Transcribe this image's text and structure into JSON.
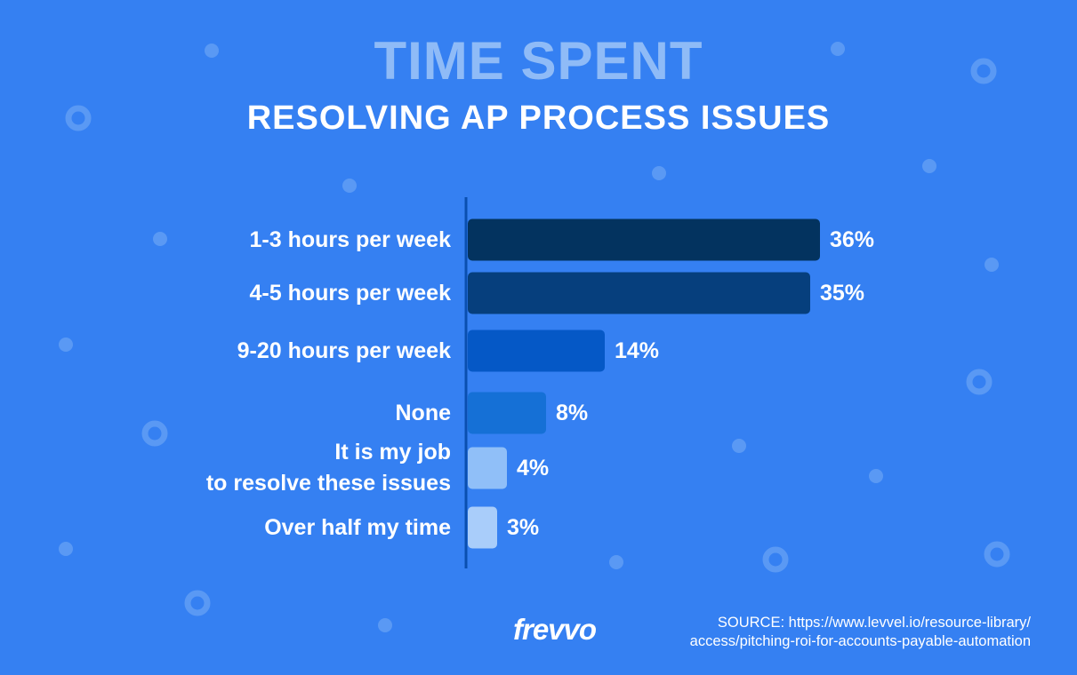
{
  "title": "TIME SPENT",
  "subtitle": "RESOLVING AP PROCESS ISSUES",
  "chart_data": {
    "type": "bar",
    "orientation": "horizontal",
    "categories": [
      "1-3 hours per week",
      "4-5 hours per week",
      "9-20 hours per week",
      "None",
      "It is my job to resolve these issues",
      "Over half my time"
    ],
    "values": [
      36,
      35,
      14,
      8,
      4,
      3
    ],
    "value_labels": [
      "36%",
      "35%",
      "14%",
      "8%",
      "4%",
      "3%"
    ],
    "colors": [
      "#03335f",
      "#063f7d",
      "#0558c6",
      "#1570d6",
      "#90bff8",
      "#a9cdfa"
    ],
    "unit": "%",
    "xlim": [
      0,
      36
    ]
  },
  "footer": {
    "logo": "frevvo",
    "source_line1": "SOURCE: https://www.levvel.io/resource-library/",
    "source_line2": "access/pitching-roi-for-accounts-payable-automation"
  }
}
